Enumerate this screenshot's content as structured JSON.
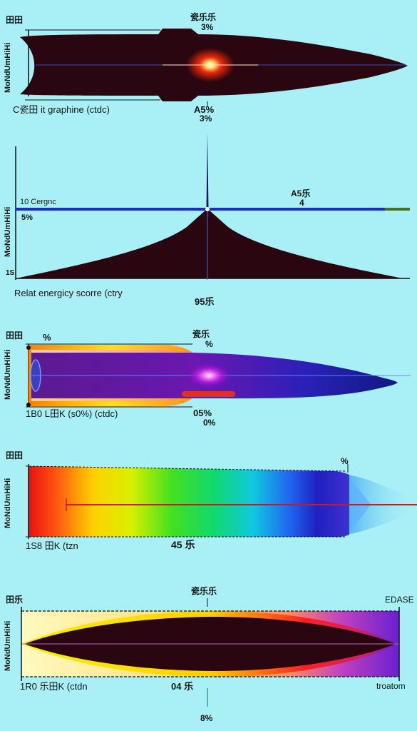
{
  "colors": {
    "background": "#a9f0f6",
    "projectile_dark": "#2a0710",
    "axis_blue": "#1a2bd0",
    "trace_red": "#e0201c"
  },
  "icons": {
    "impact_flash": "glow-flash-icon",
    "spike": "peak-spike-icon"
  },
  "panel1": {
    "corner": "田田",
    "axis_label": "MoNdUmHiHi",
    "top_label": "瓷乐乐",
    "top_value": "3%",
    "bottom_left": "C瓷田 it graphine (ctdc)",
    "bottom_value": "A5%",
    "bottom_value2": "3%"
  },
  "panel2": {
    "axis_label": "MoNdUmHiHi",
    "left_top": "10 Cergnc",
    "left_mid": "5%",
    "left_low": "1S",
    "right_label": "A5乐",
    "right_value": "4",
    "caption": "Relat energicy scorre (ctry",
    "center_value": "95乐"
  },
  "panel3": {
    "corner": "田田",
    "corner_pct": "%",
    "axis_label": "MoNdUmHiHi",
    "top_label": "瓷乐",
    "top_value": "%",
    "bottom_left": "1B0 L田K (s0%) (ctdc)",
    "bottom_value": "05%",
    "bottom_value2": "0%"
  },
  "panel4": {
    "corner": "田田",
    "axis_label": "MoNdUmHiHi",
    "top_right": "%",
    "bottom_left": "1S8 田K (tzn",
    "bottom_value": "45 乐"
  },
  "panel5": {
    "corner": "田乐",
    "axis_label": "MoNdUmHiHi",
    "top_label": "瓷乐乐",
    "top_right": "EDASE",
    "bottom_left": "1R0 乐田K (ctdn",
    "bottom_value": "04 乐",
    "bottom_right": "troatom",
    "footer_value": "8%"
  }
}
